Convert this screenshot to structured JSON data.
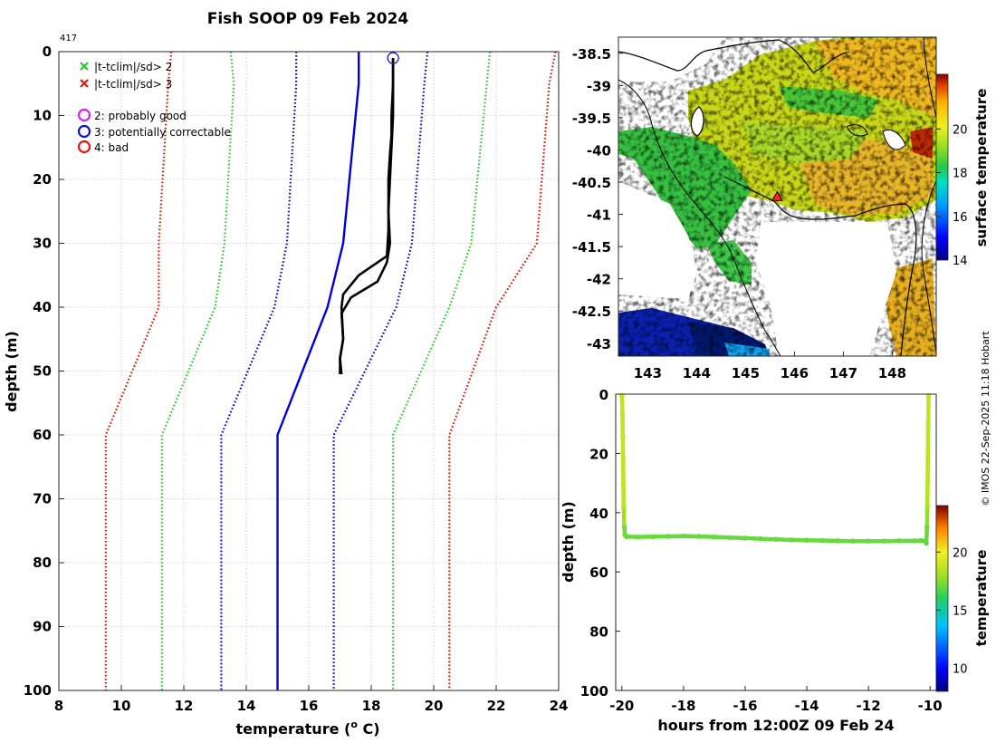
{
  "figure": {
    "title": "Fish SOOP 09 Feb 2024",
    "profile_count": "417",
    "credit": "© IMOS 22-Sep-2025 11:18 Hobart"
  },
  "legend": {
    "flags": [
      {
        "marker": "x",
        "color": "#22cc22",
        "label": "|t-tclim|/sd>  2"
      },
      {
        "marker": "x",
        "color": "#ee1111",
        "label": "|t-tclim|/sd>  3"
      }
    ],
    "qc": [
      {
        "marker": "o",
        "color": "#dd22dd",
        "label": "2: probably good"
      },
      {
        "marker": "o",
        "color": "#1111cc",
        "label": "3: potentially correctable"
      },
      {
        "marker": "o",
        "color": "#ee1111",
        "label": "4: bad"
      }
    ]
  },
  "colors": {
    "axis": "#262626",
    "grid": "#b0b0b0",
    "coast": "#000000",
    "clim_mean": "#0000dd",
    "clim_1sd": "#0000dd",
    "clim_2sd": "#22cc22",
    "clim_3sd": "#dd1100",
    "profile": "#000000",
    "marker_fill": "#ff2222"
  },
  "chart_data": [
    {
      "id": "profile",
      "type": "line",
      "title": "Fish SOOP 09 Feb 2024",
      "xlabel": "temperature (",
      "xlabel_sup": "o",
      "xlabel_end": " C)",
      "ylabel": "depth (m)",
      "xlim": [
        8,
        24
      ],
      "ylim": [
        100,
        0
      ],
      "xticks": [
        8,
        10,
        12,
        14,
        16,
        18,
        20,
        22,
        24
      ],
      "yticks": [
        0,
        10,
        20,
        30,
        40,
        50,
        60,
        70,
        80,
        90,
        100
      ],
      "grid": true,
      "climatology": {
        "depth": [
          0,
          5,
          30,
          40,
          60,
          100
        ],
        "series": [
          {
            "name": "-3sd",
            "style": "dotted",
            "color": "#dd1100",
            "values": [
              11.6,
              11.5,
              11.2,
              11.2,
              9.5,
              9.5
            ]
          },
          {
            "name": "-2sd",
            "style": "dotted",
            "color": "#22cc22",
            "values": [
              13.5,
              13.6,
              13.3,
              13.0,
              11.3,
              11.3
            ]
          },
          {
            "name": "-1sd",
            "style": "dotted",
            "color": "#0000dd",
            "values": [
              15.6,
              15.6,
              15.3,
              14.9,
              13.2,
              13.2
            ]
          },
          {
            "name": "mean",
            "style": "solid",
            "color": "#0000dd",
            "values": [
              17.6,
              17.6,
              17.1,
              16.6,
              15.0,
              15.0
            ]
          },
          {
            "name": "+1sd",
            "style": "dotted",
            "color": "#0000dd",
            "values": [
              19.8,
              19.7,
              19.3,
              18.8,
              16.8,
              16.8
            ]
          },
          {
            "name": "+2sd",
            "style": "dotted",
            "color": "#22cc22",
            "values": [
              21.8,
              21.7,
              21.2,
              20.5,
              18.7,
              18.7
            ]
          },
          {
            "name": "+3sd",
            "style": "dotted",
            "color": "#dd1100",
            "values": [
              23.9,
              23.7,
              23.3,
              22.0,
              20.5,
              20.5
            ]
          }
        ]
      },
      "profiles": [
        {
          "name": "down",
          "temp": [
            18.7,
            18.7,
            18.65,
            18.65,
            18.6,
            18.55,
            18.55,
            18.5,
            17.6,
            17.1,
            17.05,
            17.1,
            17.0,
            17.0
          ],
          "depth": [
            1,
            5,
            10,
            13,
            16,
            20,
            28,
            32,
            35,
            38,
            40,
            45,
            48,
            50.5
          ]
        },
        {
          "name": "up",
          "temp": [
            17.05,
            17.0,
            17.1,
            17.05,
            17.35,
            18.2,
            18.5,
            18.6,
            18.55,
            18.6,
            18.65,
            18.7,
            18.7
          ],
          "depth": [
            50.5,
            48,
            45,
            41,
            38.5,
            36,
            33,
            30,
            25,
            20,
            15,
            10,
            1
          ]
        }
      ],
      "qc_markers": [
        {
          "temp": 18.7,
          "depth": 1,
          "qc": "3: potentially correctable"
        }
      ]
    },
    {
      "id": "map",
      "type": "heatmap",
      "xlim": [
        142.4,
        148.9
      ],
      "ylim": [
        -43.2,
        -38.25
      ],
      "xticks": [
        143,
        144,
        145,
        146,
        147,
        148
      ],
      "yticks": [
        -38.5,
        -39,
        -39.5,
        -40,
        -40.5,
        -41,
        -41.5,
        -42,
        -42.5,
        -43
      ],
      "colorbar": {
        "label": "surface temperature",
        "min": 14,
        "max": 22.5,
        "ticks": [
          14,
          16,
          18,
          20
        ]
      },
      "station": {
        "lon": 145.65,
        "lat": -40.73
      }
    },
    {
      "id": "timeseries",
      "type": "scatter",
      "xlabel": "hours from 12:00Z 09 Feb 24",
      "ylabel": "depth (m)",
      "xlim": [
        -20.2,
        -9.8
      ],
      "ylim": [
        100,
        0
      ],
      "xticks": [
        -20,
        -18,
        -16,
        -14,
        -12,
        -10
      ],
      "yticks": [
        0,
        20,
        40,
        60,
        80,
        100
      ],
      "colorbar": {
        "label": "temperature",
        "min": 8,
        "max": 24,
        "ticks": [
          10,
          15,
          20
        ]
      },
      "points": {
        "x": [
          -20.0,
          -19.98,
          -19.97,
          -19.96,
          -19.95,
          -19.94,
          -19.92,
          -19.9,
          -19.85,
          -19.5,
          -19.0,
          -18.5,
          -18.0,
          -17.5,
          -17.0,
          -16.5,
          -16.0,
          -15.5,
          -15.0,
          -14.5,
          -14.0,
          -13.5,
          -13.0,
          -12.5,
          -12.0,
          -11.5,
          -11.0,
          -10.5,
          -10.3,
          -10.15,
          -10.12,
          -10.1,
          -10.09,
          -10.08,
          -10.07,
          -10.06,
          -10.05
        ],
        "depth": [
          0.5,
          7,
          14,
          22,
          30,
          38,
          45,
          47.5,
          48.1,
          48.2,
          48.1,
          48.0,
          47.9,
          48.0,
          48.2,
          48.4,
          48.6,
          48.8,
          49.0,
          49.2,
          49.3,
          49.4,
          49.5,
          49.6,
          49.6,
          49.6,
          49.5,
          49.5,
          49.4,
          49.6,
          50.3,
          45,
          38,
          30,
          20,
          10,
          0.5
        ],
        "temp": [
          18.7,
          18.7,
          18.7,
          18.65,
          18.6,
          18.55,
          17.3,
          17.1,
          17.05,
          17.05,
          17.05,
          17.05,
          17.05,
          17.05,
          17.05,
          17.05,
          17.05,
          17.05,
          17.05,
          17.05,
          17.05,
          17.05,
          17.05,
          17.05,
          17.05,
          17.05,
          17.05,
          17.05,
          17.05,
          17.0,
          17.0,
          17.1,
          18.3,
          18.5,
          18.6,
          18.65,
          18.7
        ]
      }
    }
  ]
}
